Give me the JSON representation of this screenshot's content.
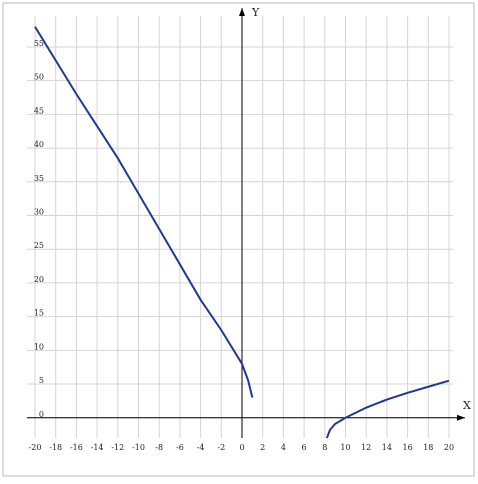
{
  "chart_data": {
    "type": "line",
    "x": [
      -20,
      -16,
      -12,
      -8,
      -4,
      -2,
      0,
      0.6,
      1,
      null,
      8.2,
      8.5,
      9,
      10,
      12,
      14,
      16,
      18,
      20
    ],
    "series": [
      {
        "color": "#1f3a8f",
        "values": [
          58,
          48,
          38.5,
          28,
          17.5,
          13,
          8,
          5.5,
          3,
          null,
          -3,
          -1.8,
          -0.9,
          0,
          1.5,
          2.7,
          3.7,
          4.6,
          5.5
        ]
      }
    ],
    "xlabel": "X",
    "ylabel": "Y",
    "xlim": [
      -20,
      20
    ],
    "ylim": [
      -3,
      58.7
    ],
    "xticks": [
      -20,
      -18,
      -16,
      -14,
      -12,
      -10,
      -8,
      -6,
      -4,
      -2,
      0,
      2,
      4,
      6,
      8,
      10,
      12,
      14,
      16,
      18,
      20
    ],
    "yticks": [
      0,
      5,
      10,
      15,
      20,
      25,
      30,
      35,
      40,
      45,
      50,
      55
    ],
    "grid": true
  }
}
